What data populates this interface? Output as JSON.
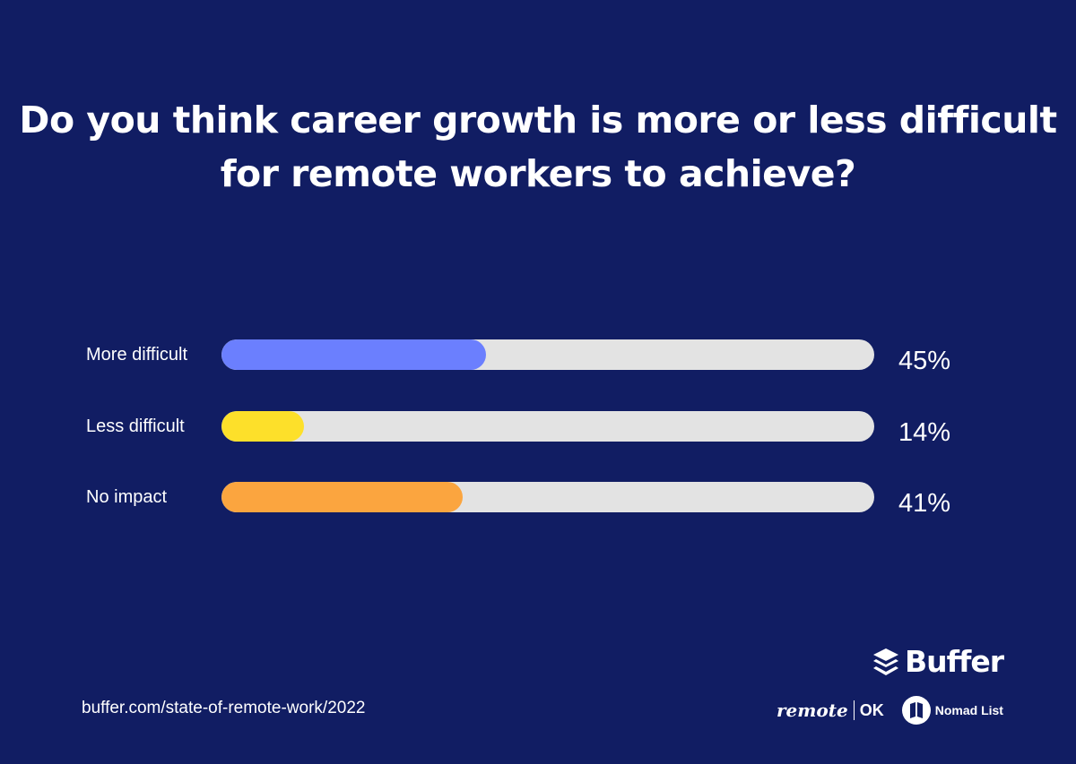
{
  "chart_data": {
    "type": "bar",
    "orientation": "horizontal",
    "title": "Do you think career growth is more or less difficult for remote workers to achieve?",
    "categories": [
      "More difficult",
      "Less difficult",
      "No impact"
    ],
    "values": [
      45,
      14,
      41
    ],
    "value_labels": [
      "45%",
      "14%",
      "41%"
    ],
    "colors": [
      "#6b7ffe",
      "#fde02a",
      "#fba53f"
    ],
    "track_color": "#e3e3e3",
    "xlim": [
      0,
      100
    ],
    "grid": false
  },
  "background": "#111d63",
  "footer": {
    "url": "buffer.com/state-of-remote-work/2022",
    "brand": "Buffer",
    "partner1_a": "remote",
    "partner1_b": "OK",
    "partner2": "Nomad List"
  }
}
